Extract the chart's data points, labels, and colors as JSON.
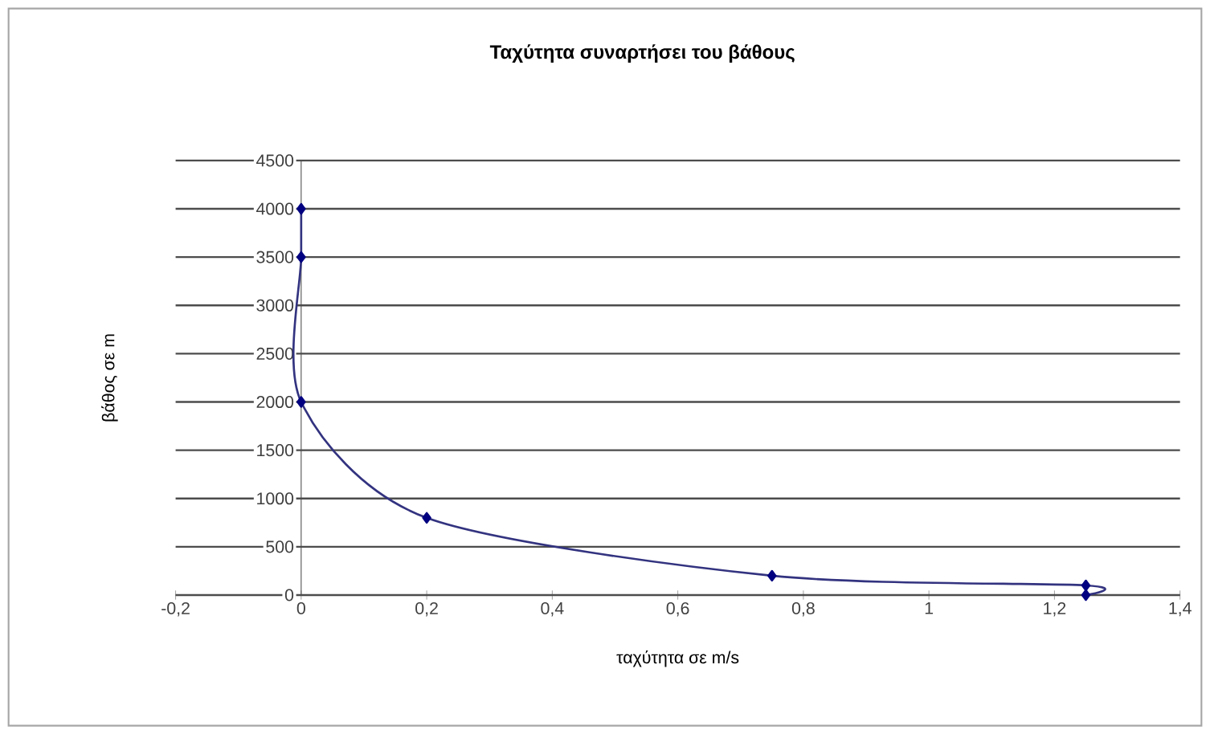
{
  "chart_data": {
    "type": "line",
    "title": "Ταχύτητα συναρτήσει του βάθους",
    "xlabel": "ταχύτητα σε m/s",
    "ylabel": "βάθος σε m",
    "series": [
      {
        "color": "#000080",
        "x": [
          1.25,
          1.25,
          0.75,
          0.2,
          0,
          0,
          0
        ],
        "values": [
          0,
          100,
          200,
          800,
          2000,
          3500,
          4000
        ]
      }
    ],
    "xlim": [
      -0.2,
      1.4
    ],
    "xticks": [
      {
        "value": -0.2,
        "label": "-0,2"
      },
      0,
      {
        "value": 0.2,
        "label": "0,2"
      },
      {
        "value": 0.4,
        "label": "0,4"
      },
      {
        "value": 0.6,
        "label": "0,6"
      },
      {
        "value": 0.8,
        "label": "0,8"
      },
      1,
      {
        "value": 1.2,
        "label": "1,2"
      },
      {
        "value": 1.4,
        "label": "1,4"
      }
    ],
    "ylim": [
      0,
      4500
    ],
    "yticks": [
      0,
      500,
      1000,
      1500,
      2000,
      2500,
      3000,
      3500,
      4000,
      4500
    ],
    "grid": "y",
    "marker": "diamond",
    "line_style": "solid"
  }
}
